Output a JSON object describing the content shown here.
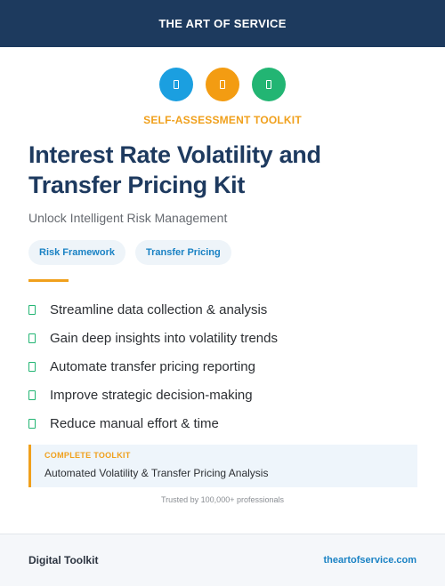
{
  "header": {
    "brand": "THE ART OF SERVICE"
  },
  "icons": [
    {
      "name": "blue-icon",
      "color": "#1b9fe0"
    },
    {
      "name": "orange-icon",
      "color": "#f39c12"
    },
    {
      "name": "green-icon",
      "color": "#22b573"
    }
  ],
  "kicker": "SELF-ASSESSMENT TOOLKIT",
  "title": "Interest Rate Volatility and Transfer Pricing Kit",
  "subtitle": "Unlock Intelligent Risk Management",
  "tags": [
    "Risk Framework",
    "Transfer Pricing"
  ],
  "features": [
    "Streamline data collection & analysis",
    "Gain deep insights into volatility trends",
    "Automate transfer pricing reporting",
    "Improve strategic decision-making",
    "Reduce manual effort & time"
  ],
  "callout": {
    "label": "COMPLETE TOOLKIT",
    "text": "Automated Volatility & Transfer Pricing Analysis"
  },
  "trusted": "Trusted by 100,000+ professionals",
  "footer": {
    "left": "Digital Toolkit",
    "right": "theartofservice.com"
  },
  "colors": {
    "header_bg": "#1d3a5e",
    "accent": "#f0a01c",
    "link": "#1a82c4",
    "check": "#22b573"
  }
}
